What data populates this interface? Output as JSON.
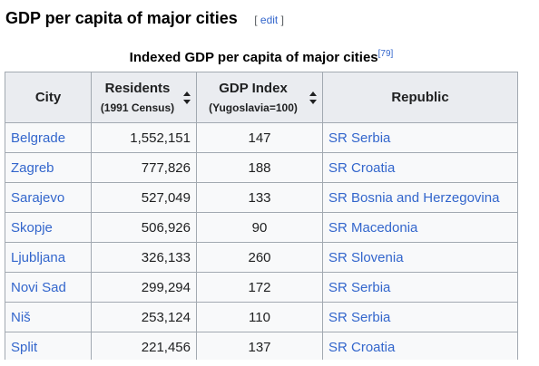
{
  "section": {
    "title": "GDP per capita of major cities",
    "edit_open": "[",
    "edit_label": "edit",
    "edit_close": "]"
  },
  "table": {
    "caption": "Indexed GDP per capita of major cities",
    "caption_ref": "[79]",
    "headers": {
      "city": "City",
      "residents": "Residents",
      "residents_sub": "(1991 Census)",
      "gdp": "GDP Index",
      "gdp_sub": "(Yugoslavia=100)",
      "republic": "Republic"
    },
    "rows": [
      {
        "city": "Belgrade",
        "residents": "1,552,151",
        "gdp": "147",
        "republic": "SR Serbia"
      },
      {
        "city": "Zagreb",
        "residents": "777,826",
        "gdp": "188",
        "republic": "SR Croatia"
      },
      {
        "city": "Sarajevo",
        "residents": "527,049",
        "gdp": "133",
        "republic": "SR Bosnia and Herzegovina"
      },
      {
        "city": "Skopje",
        "residents": "506,926",
        "gdp": "90",
        "republic": "SR Macedonia"
      },
      {
        "city": "Ljubljana",
        "residents": "326,133",
        "gdp": "260",
        "republic": "SR Slovenia"
      },
      {
        "city": "Novi Sad",
        "residents": "299,294",
        "gdp": "172",
        "republic": "SR Serbia"
      },
      {
        "city": "Niš",
        "residents": "253,124",
        "gdp": "110",
        "republic": "SR Serbia"
      },
      {
        "city": "Split",
        "residents": "221,456",
        "gdp": "137",
        "republic": "SR Croatia"
      }
    ]
  },
  "icons": {
    "sort": "sort-arrows-icon"
  },
  "colors": {
    "link": "#3366cc",
    "header_bg": "#eaecf0",
    "cell_bg": "#f8f9fa",
    "border": "#a2a9b1"
  }
}
